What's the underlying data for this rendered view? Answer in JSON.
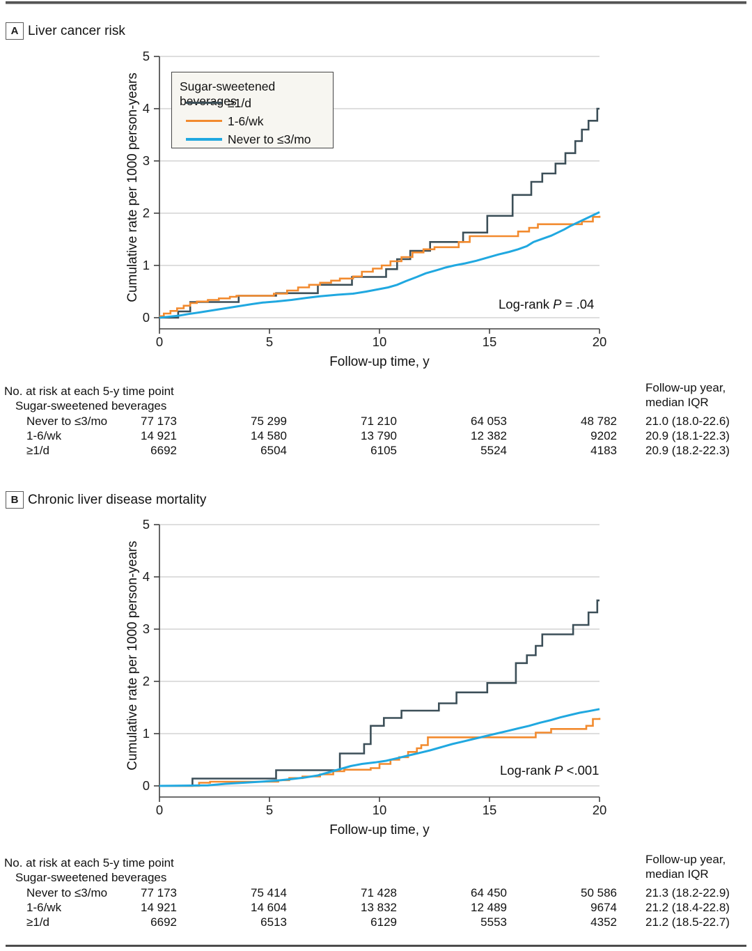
{
  "colors": {
    "dark": "#3C4F58",
    "orange": "#F28A2E",
    "blue": "#20A8E0",
    "grid": "#CBCBCB",
    "axis": "#3F3F3F",
    "legend_bg": "#F7F6F1",
    "legend_border": "#454545"
  },
  "panels": [
    {
      "label": "A",
      "title": "Liver cancer risk",
      "y_axis_label": "Cumulative rate per 1000 person-years",
      "x_axis_label": "Follow-up time, y",
      "log_rank": {
        "prefix": "Log-rank",
        "symbol": "P",
        "value": "= .04"
      },
      "risk_table": {
        "title": "No. at risk at each 5-y time point",
        "group_header": "Sugar-sweetened beverages",
        "followup_header_line1": "Follow-up year,",
        "followup_header_line2": "median IQR",
        "rows": [
          {
            "label": "Never to ≤3/mo",
            "counts": [
              "77 173",
              "75 299",
              "71 210",
              "64 053",
              "48 782"
            ],
            "median": "21.0 (18.0-22.6)"
          },
          {
            "label": "1-6/wk",
            "counts": [
              "14 921",
              "14 580",
              "13 790",
              "12 382",
              "9202"
            ],
            "median": "20.9 (18.1-22.3)"
          },
          {
            "label": "≥1/d",
            "counts": [
              "6692",
              "6504",
              "6105",
              "5524",
              "4183"
            ],
            "median": "20.9 (18.2-22.3)"
          }
        ]
      }
    },
    {
      "label": "B",
      "title": "Chronic liver disease mortality",
      "y_axis_label": "Cumulative rate per 1000 person-years",
      "x_axis_label": "Follow-up time, y",
      "log_rank": {
        "prefix": "Log-rank",
        "symbol": "P",
        "value": "<.001"
      },
      "risk_table": {
        "title": "No. at risk at each 5-y time point",
        "group_header": "Sugar-sweetened beverages",
        "followup_header_line1": "Follow-up year,",
        "followup_header_line2": "median IQR",
        "rows": [
          {
            "label": "Never to ≤3/mo",
            "counts": [
              "77 173",
              "75 414",
              "71 428",
              "64 450",
              "50 586"
            ],
            "median": "21.3 (18.2-22.9)"
          },
          {
            "label": "1-6/wk",
            "counts": [
              "14 921",
              "14 604",
              "13 832",
              "12 489",
              "9674"
            ],
            "median": "21.2 (18.4-22.8)"
          },
          {
            "label": "≥1/d",
            "counts": [
              "6692",
              "6513",
              "6129",
              "5553",
              "4352"
            ],
            "median": "21.2 (18.5-22.7)"
          }
        ]
      }
    }
  ],
  "chart_data": [
    {
      "type": "line",
      "subtype": "cumulative-incidence-step-curves",
      "title": "Liver cancer risk",
      "xlabel": "Follow-up time, y",
      "ylabel": "Cumulative rate per 1000 person-years",
      "xlim": [
        0,
        20
      ],
      "ylim": [
        0,
        5
      ],
      "x_ticks": [
        0,
        5,
        10,
        15,
        20
      ],
      "y_ticks": [
        0,
        1,
        2,
        3,
        4,
        5
      ],
      "grid": "horizontal",
      "annotation": "Log-rank P = .04",
      "legend": {
        "title": "Sugar-sweetened beverages",
        "position": "upper left",
        "entries": [
          {
            "label": "≥1/d",
            "color": "#3C4F58"
          },
          {
            "label": "1-6/wk",
            "color": "#F28A2E"
          },
          {
            "label": "Never to ≤3/mo",
            "color": "#20A8E0"
          }
        ]
      },
      "series": [
        {
          "name": "≥1/d",
          "color": "#3C4F58",
          "style": "step",
          "width": 2.6,
          "points": [
            [
              0,
              0
            ],
            [
              0.85,
              0.12
            ],
            [
              1.4,
              0.3
            ],
            [
              3.6,
              0.42
            ],
            [
              5.3,
              0.47
            ],
            [
              7.2,
              0.63
            ],
            [
              8.75,
              0.78
            ],
            [
              10.3,
              0.93
            ],
            [
              10.8,
              1.12
            ],
            [
              11.4,
              1.28
            ],
            [
              12.3,
              1.45
            ],
            [
              13.8,
              1.63
            ],
            [
              14.9,
              1.95
            ],
            [
              16.05,
              2.35
            ],
            [
              16.9,
              2.6
            ],
            [
              17.4,
              2.76
            ],
            [
              18.0,
              2.95
            ],
            [
              18.45,
              3.15
            ],
            [
              18.9,
              3.38
            ],
            [
              19.2,
              3.6
            ],
            [
              19.5,
              3.77
            ],
            [
              19.9,
              4.0
            ],
            [
              20,
              4.0
            ]
          ]
        },
        {
          "name": "1-6/wk",
          "color": "#F28A2E",
          "style": "step",
          "width": 2.6,
          "points": [
            [
              0,
              0.03
            ],
            [
              0.2,
              0.08
            ],
            [
              0.5,
              0.13
            ],
            [
              0.8,
              0.18
            ],
            [
              1.1,
              0.23
            ],
            [
              1.4,
              0.28
            ],
            [
              1.7,
              0.31
            ],
            [
              2.2,
              0.34
            ],
            [
              2.7,
              0.37
            ],
            [
              3.2,
              0.4
            ],
            [
              3.5,
              0.42
            ],
            [
              5.2,
              0.46
            ],
            [
              5.8,
              0.52
            ],
            [
              6.3,
              0.58
            ],
            [
              6.8,
              0.63
            ],
            [
              7.3,
              0.67
            ],
            [
              7.8,
              0.71
            ],
            [
              8.2,
              0.75
            ],
            [
              8.8,
              0.79
            ],
            [
              9.2,
              0.88
            ],
            [
              9.7,
              0.94
            ],
            [
              10.1,
              1.0
            ],
            [
              10.5,
              1.08
            ],
            [
              11.0,
              1.16
            ],
            [
              11.5,
              1.25
            ],
            [
              12.0,
              1.31
            ],
            [
              12.5,
              1.35
            ],
            [
              13.6,
              1.45
            ],
            [
              14.1,
              1.56
            ],
            [
              16.3,
              1.65
            ],
            [
              16.8,
              1.72
            ],
            [
              17.2,
              1.79
            ],
            [
              19.2,
              1.84
            ],
            [
              19.7,
              1.93
            ],
            [
              20,
              1.95
            ]
          ]
        },
        {
          "name": "Never to ≤3/mo",
          "color": "#20A8E0",
          "style": "line",
          "width": 3,
          "points": [
            [
              0,
              0
            ],
            [
              0.9,
              0.04
            ],
            [
              1.3,
              0.07
            ],
            [
              1.8,
              0.1
            ],
            [
              2.4,
              0.14
            ],
            [
              3.0,
              0.18
            ],
            [
              3.6,
              0.22
            ],
            [
              4.2,
              0.26
            ],
            [
              4.7,
              0.29
            ],
            [
              5.3,
              0.31
            ],
            [
              6.0,
              0.34
            ],
            [
              6.7,
              0.38
            ],
            [
              7.3,
              0.41
            ],
            [
              8.1,
              0.44
            ],
            [
              8.8,
              0.46
            ],
            [
              9.4,
              0.5
            ],
            [
              9.9,
              0.54
            ],
            [
              10.4,
              0.58
            ],
            [
              10.8,
              0.63
            ],
            [
              11.2,
              0.7
            ],
            [
              11.7,
              0.78
            ],
            [
              12.1,
              0.85
            ],
            [
              12.6,
              0.91
            ],
            [
              13.0,
              0.96
            ],
            [
              13.4,
              1.0
            ],
            [
              13.9,
              1.04
            ],
            [
              14.4,
              1.09
            ],
            [
              14.9,
              1.15
            ],
            [
              15.4,
              1.21
            ],
            [
              15.9,
              1.26
            ],
            [
              16.3,
              1.31
            ],
            [
              16.7,
              1.37
            ],
            [
              17.0,
              1.45
            ],
            [
              17.4,
              1.51
            ],
            [
              17.8,
              1.57
            ],
            [
              18.1,
              1.63
            ],
            [
              18.4,
              1.69
            ],
            [
              18.7,
              1.76
            ],
            [
              19.0,
              1.82
            ],
            [
              19.3,
              1.88
            ],
            [
              19.6,
              1.94
            ],
            [
              20,
              2.02
            ]
          ]
        }
      ]
    },
    {
      "type": "line",
      "subtype": "cumulative-incidence-step-curves",
      "title": "Chronic liver disease mortality",
      "xlabel": "Follow-up time, y",
      "ylabel": "Cumulative rate per 1000 person-years",
      "xlim": [
        0,
        20
      ],
      "ylim": [
        0,
        5
      ],
      "x_ticks": [
        0,
        5,
        10,
        15,
        20
      ],
      "y_ticks": [
        0,
        1,
        2,
        3,
        4,
        5
      ],
      "grid": "horizontal",
      "annotation": "Log-rank P <.001",
      "legend": {
        "title": "Sugar-sweetened beverages",
        "position": "none (shared with panel A)",
        "entries": [
          {
            "label": "≥1/d",
            "color": "#3C4F58"
          },
          {
            "label": "1-6/wk",
            "color": "#F28A2E"
          },
          {
            "label": "Never to ≤3/mo",
            "color": "#20A8E0"
          }
        ]
      },
      "series": [
        {
          "name": "≥1/d",
          "color": "#3C4F58",
          "style": "step",
          "width": 2.6,
          "points": [
            [
              0,
              0
            ],
            [
              1.5,
              0.14
            ],
            [
              5.3,
              0.3
            ],
            [
              8.2,
              0.62
            ],
            [
              9.3,
              0.8
            ],
            [
              9.6,
              1.15
            ],
            [
              10.2,
              1.3
            ],
            [
              11.0,
              1.44
            ],
            [
              12.7,
              1.58
            ],
            [
              13.5,
              1.79
            ],
            [
              14.9,
              1.97
            ],
            [
              16.2,
              2.35
            ],
            [
              16.7,
              2.5
            ],
            [
              17.1,
              2.68
            ],
            [
              17.4,
              2.9
            ],
            [
              18.8,
              3.08
            ],
            [
              19.5,
              3.32
            ],
            [
              19.9,
              3.55
            ],
            [
              20,
              3.55
            ]
          ]
        },
        {
          "name": "1-6/wk",
          "color": "#F28A2E",
          "style": "step",
          "width": 2.6,
          "points": [
            [
              0,
              0
            ],
            [
              1.8,
              0.06
            ],
            [
              2.3,
              0.08
            ],
            [
              5.4,
              0.11
            ],
            [
              5.9,
              0.15
            ],
            [
              6.5,
              0.18
            ],
            [
              7.3,
              0.22
            ],
            [
              7.9,
              0.28
            ],
            [
              8.4,
              0.31
            ],
            [
              9.6,
              0.34
            ],
            [
              10.0,
              0.42
            ],
            [
              10.5,
              0.5
            ],
            [
              10.9,
              0.55
            ],
            [
              11.3,
              0.65
            ],
            [
              11.7,
              0.72
            ],
            [
              11.9,
              0.78
            ],
            [
              12.2,
              0.93
            ],
            [
              17.1,
              1.02
            ],
            [
              17.8,
              1.09
            ],
            [
              19.4,
              1.15
            ],
            [
              19.7,
              1.28
            ],
            [
              20,
              1.3
            ]
          ]
        },
        {
          "name": "Never to ≤3/mo",
          "color": "#20A8E0",
          "style": "line",
          "width": 3,
          "points": [
            [
              0,
              0
            ],
            [
              2.2,
              0.01
            ],
            [
              3.0,
              0.04
            ],
            [
              3.8,
              0.06
            ],
            [
              4.6,
              0.08
            ],
            [
              5.3,
              0.1
            ],
            [
              6.0,
              0.13
            ],
            [
              6.6,
              0.16
            ],
            [
              7.2,
              0.2
            ],
            [
              7.7,
              0.26
            ],
            [
              8.2,
              0.32
            ],
            [
              8.7,
              0.38
            ],
            [
              9.2,
              0.42
            ],
            [
              9.8,
              0.45
            ],
            [
              10.3,
              0.48
            ],
            [
              10.8,
              0.53
            ],
            [
              11.3,
              0.58
            ],
            [
              11.8,
              0.63
            ],
            [
              12.3,
              0.68
            ],
            [
              12.8,
              0.74
            ],
            [
              13.3,
              0.8
            ],
            [
              13.8,
              0.85
            ],
            [
              14.3,
              0.9
            ],
            [
              14.9,
              0.96
            ],
            [
              15.3,
              1.0
            ],
            [
              15.8,
              1.05
            ],
            [
              16.3,
              1.1
            ],
            [
              16.8,
              1.15
            ],
            [
              17.3,
              1.21
            ],
            [
              17.8,
              1.26
            ],
            [
              18.2,
              1.31
            ],
            [
              18.7,
              1.36
            ],
            [
              19.1,
              1.4
            ],
            [
              19.5,
              1.43
            ],
            [
              20,
              1.47
            ]
          ]
        }
      ]
    }
  ]
}
